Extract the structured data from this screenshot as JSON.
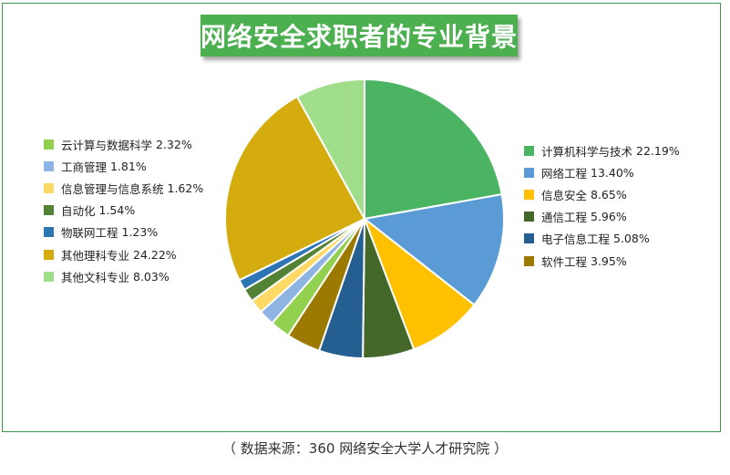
{
  "title": "网络安全求职者的专业背景",
  "source": "（ 数据来源：360 网络安全大学人才研究院 ）",
  "chart_data": {
    "type": "pie",
    "title": "网络安全求职者的专业背景",
    "slices": [
      {
        "label": "计算机科学与技术",
        "value": 22.19,
        "display": "22.19%",
        "color": "#4bb462",
        "legend": "right"
      },
      {
        "label": "网络工程",
        "value": 13.4,
        "display": "13.40%",
        "color": "#5b9bd5",
        "legend": "right"
      },
      {
        "label": "信息安全",
        "value": 8.65,
        "display": "8.65%",
        "color": "#ffc000",
        "legend": "right"
      },
      {
        "label": "通信工程",
        "value": 5.96,
        "display": "5.96%",
        "color": "#44672a",
        "legend": "right"
      },
      {
        "label": "电子信息工程",
        "value": 5.08,
        "display": "5.08%",
        "color": "#255e91",
        "legend": "right"
      },
      {
        "label": "软件工程",
        "value": 3.95,
        "display": "3.95%",
        "color": "#9c7a00",
        "legend": "right"
      },
      {
        "label": "云计算与数据科学",
        "value": 2.32,
        "display": "2.32%",
        "color": "#92d050",
        "legend": "left"
      },
      {
        "label": "工商管理",
        "value": 1.81,
        "display": "1.81%",
        "color": "#8eb4e3",
        "legend": "left"
      },
      {
        "label": "信息管理与信息系统",
        "value": 1.62,
        "display": "1.62%",
        "color": "#ffd966",
        "legend": "left"
      },
      {
        "label": "自动化",
        "value": 1.54,
        "display": "1.54%",
        "color": "#548235",
        "legend": "left"
      },
      {
        "label": "物联网工程",
        "value": 1.23,
        "display": "1.23%",
        "color": "#2e75b6",
        "legend": "left"
      },
      {
        "label": "其他理科专业",
        "value": 24.22,
        "display": "24.22%",
        "color": "#d4ac0d",
        "legend": "left"
      },
      {
        "label": "其他文科专业",
        "value": 8.03,
        "display": "8.03%",
        "color": "#a1de8c",
        "legend": "left"
      }
    ]
  }
}
